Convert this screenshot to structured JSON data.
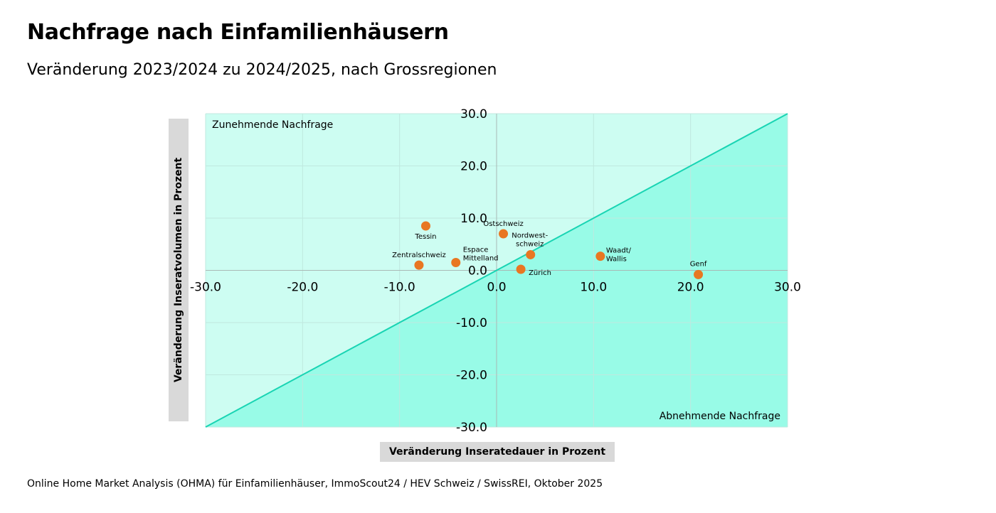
{
  "title": "Nachfrage nach Einfamilienhäusern",
  "subtitle": "Veränderung 2023/2024 zu 2024/2025, nach Grossregionen",
  "source": "Online Home Market Analysis (OHMA) für Einfamilienhäuser, ImmoScout24 / HEV Schweiz / SwissREI, Oktober 2025",
  "colors": {
    "upper_region": "#cdfdf2",
    "lower_region": "#98fbe7",
    "diagonal": "#19d4b3",
    "point": "#e87722",
    "grid": "#bfe8df"
  },
  "chart_data": {
    "type": "scatter",
    "xlabel": "Veränderung Inseratedauer in Prozent",
    "ylabel": "Veränderung Inseratvolumen in Prozent",
    "xlim": [
      -30,
      30
    ],
    "ylim": [
      -30,
      30
    ],
    "x_ticks": [
      -30,
      -20,
      -10,
      0,
      10,
      20,
      30
    ],
    "y_ticks": [
      30,
      20,
      10,
      0,
      -10,
      -20,
      -30
    ],
    "x_tick_labels": [
      "-30.0",
      "-20.0",
      "-10.0",
      "0.0",
      "10.0",
      "20.0",
      "30.0"
    ],
    "y_tick_labels": [
      "30.0",
      "20.0",
      "10.0",
      "0.0",
      "-10.0",
      "-20.0",
      "-30.0"
    ],
    "grid": true,
    "reference_line": "y = x",
    "region_labels": {
      "upper_left": "Zunehmende Nachfrage",
      "lower_right": "Abnehmende Nachfrage"
    },
    "points": [
      {
        "label": [
          "Tessin"
        ],
        "x": -7.3,
        "y": 8.5
      },
      {
        "label": [
          "Ostschweiz"
        ],
        "x": 0.7,
        "y": 7.0
      },
      {
        "label": [
          "Nordwest-",
          "schweiz"
        ],
        "x": 3.5,
        "y": 3.0
      },
      {
        "label": [
          "Espace",
          "Mittelland"
        ],
        "x": -4.2,
        "y": 1.5
      },
      {
        "label": [
          "Zentralschweiz"
        ],
        "x": -8.0,
        "y": 1.0
      },
      {
        "label": [
          "Zürich"
        ],
        "x": 2.5,
        "y": 0.2
      },
      {
        "label": [
          "Waadt/",
          "Wallis"
        ],
        "x": 10.7,
        "y": 2.7
      },
      {
        "label": [
          "Genf"
        ],
        "x": 20.8,
        "y": -0.8
      }
    ]
  }
}
